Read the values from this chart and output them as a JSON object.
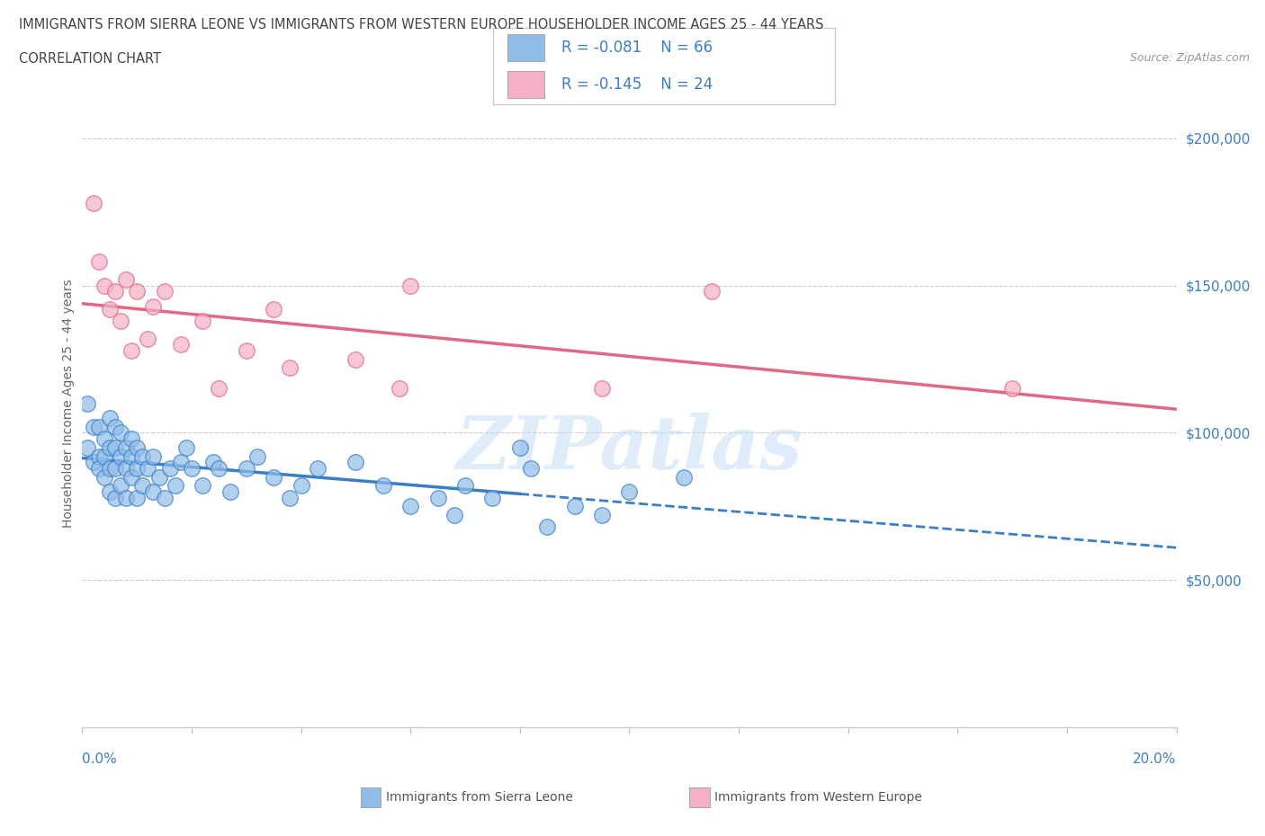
{
  "title_line1": "IMMIGRANTS FROM SIERRA LEONE VS IMMIGRANTS FROM WESTERN EUROPE HOUSEHOLDER INCOME AGES 25 - 44 YEARS",
  "title_line2": "CORRELATION CHART",
  "source_text": "Source: ZipAtlas.com",
  "ylabel": "Householder Income Ages 25 - 44 years",
  "legend_label1": "Immigrants from Sierra Leone",
  "legend_label2": "Immigrants from Western Europe",
  "r1": -0.081,
  "n1": 66,
  "r2": -0.145,
  "n2": 24,
  "color1": "#90bce8",
  "color2": "#f5b0c5",
  "trend1_color": "#3a7ec8",
  "trend2_color": "#e06882",
  "watermark_color": "#c5ddf5",
  "xlim": [
    0.0,
    0.2
  ],
  "ylim": [
    0,
    220000
  ],
  "yticks": [
    50000,
    100000,
    150000,
    200000
  ],
  "ytick_labels": [
    "$50,000",
    "$100,000",
    "$150,000",
    "$200,000"
  ],
  "sl_x": [
    0.001,
    0.001,
    0.002,
    0.002,
    0.003,
    0.003,
    0.003,
    0.004,
    0.004,
    0.004,
    0.005,
    0.005,
    0.005,
    0.005,
    0.006,
    0.006,
    0.006,
    0.006,
    0.007,
    0.007,
    0.007,
    0.008,
    0.008,
    0.008,
    0.009,
    0.009,
    0.009,
    0.01,
    0.01,
    0.01,
    0.011,
    0.011,
    0.012,
    0.013,
    0.013,
    0.014,
    0.015,
    0.016,
    0.017,
    0.018,
    0.019,
    0.02,
    0.022,
    0.024,
    0.025,
    0.027,
    0.03,
    0.032,
    0.035,
    0.038,
    0.04,
    0.043,
    0.05,
    0.055,
    0.06,
    0.065,
    0.068,
    0.07,
    0.075,
    0.08,
    0.082,
    0.085,
    0.09,
    0.095,
    0.1,
    0.11
  ],
  "sl_y": [
    110000,
    95000,
    102000,
    90000,
    92000,
    88000,
    102000,
    85000,
    92000,
    98000,
    80000,
    88000,
    95000,
    105000,
    78000,
    88000,
    95000,
    102000,
    82000,
    92000,
    100000,
    78000,
    88000,
    95000,
    85000,
    92000,
    98000,
    78000,
    88000,
    95000,
    82000,
    92000,
    88000,
    80000,
    92000,
    85000,
    78000,
    88000,
    82000,
    90000,
    95000,
    88000,
    82000,
    90000,
    88000,
    80000,
    88000,
    92000,
    85000,
    78000,
    82000,
    88000,
    90000,
    82000,
    75000,
    78000,
    72000,
    82000,
    78000,
    95000,
    88000,
    68000,
    75000,
    72000,
    80000,
    85000
  ],
  "we_x": [
    0.002,
    0.003,
    0.004,
    0.005,
    0.006,
    0.007,
    0.008,
    0.009,
    0.01,
    0.012,
    0.013,
    0.015,
    0.018,
    0.022,
    0.025,
    0.03,
    0.035,
    0.038,
    0.05,
    0.058,
    0.06,
    0.095,
    0.115,
    0.17
  ],
  "we_y": [
    178000,
    158000,
    150000,
    142000,
    148000,
    138000,
    152000,
    128000,
    148000,
    132000,
    143000,
    148000,
    130000,
    138000,
    115000,
    128000,
    142000,
    122000,
    125000,
    115000,
    150000,
    115000,
    148000,
    115000
  ]
}
